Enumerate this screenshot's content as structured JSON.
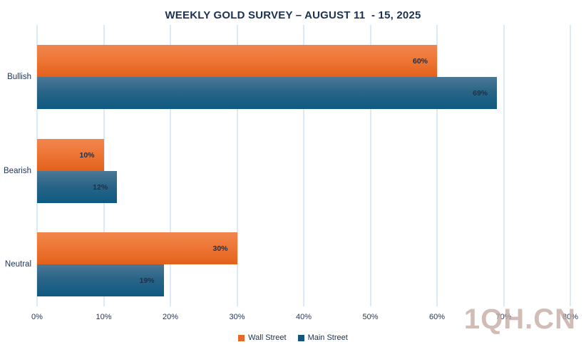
{
  "chart_data": {
    "type": "bar",
    "orientation": "horizontal",
    "title": "WEEKLY GOLD SURVEY – AUGUST 11  - 15, 2025",
    "categories": [
      "Bullish",
      "Bearish",
      "Neutral"
    ],
    "series": [
      {
        "name": "Wall Street",
        "values": [
          60,
          10,
          30
        ],
        "bar_class": "bar-orange",
        "legend_color": "#e8682b"
      },
      {
        "name": "Main Street",
        "values": [
          69,
          12,
          19
        ],
        "bar_class": "bar-blue",
        "legend_color": "#16567d"
      }
    ],
    "value_suffix": "%",
    "xlabel": "",
    "ylabel": "",
    "xlim": [
      0,
      80
    ],
    "x_ticks": [
      "0%",
      "10%",
      "20%",
      "30%",
      "40%",
      "50%",
      "60%",
      "70%",
      "80%"
    ],
    "grid": "vertical",
    "legend_position": "bottom-center",
    "data_labels": "inside-end"
  },
  "watermark": {
    "text": "1QH.CN",
    "color": "#c5aaa2"
  }
}
